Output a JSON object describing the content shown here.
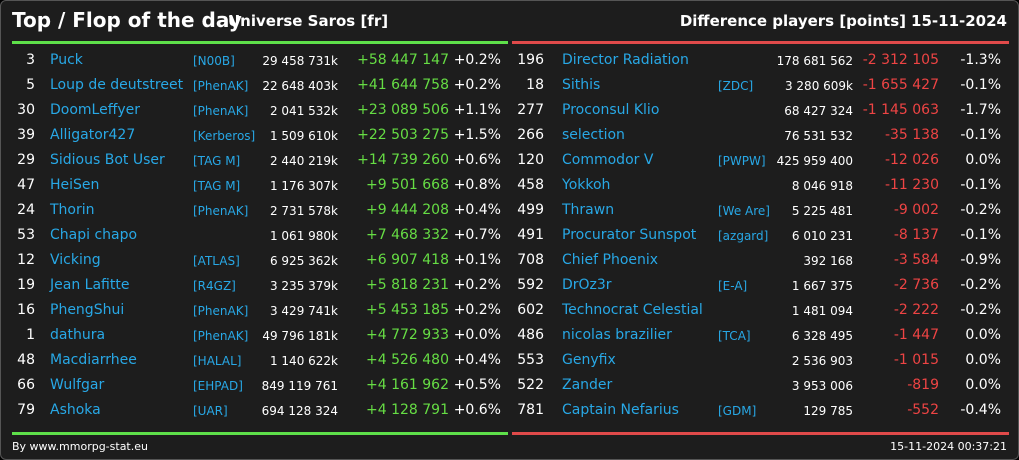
{
  "header": {
    "title": "Top / Flop of the day",
    "universe": "Universe Saros [fr]",
    "difference": "Difference players [points]",
    "date": "15-11-2024"
  },
  "colors": {
    "positive": "#66dd44",
    "negative": "#ee4444",
    "link": "#28a8e6",
    "top_rule": "#5ee04a",
    "flop_rule": "#e04a4a"
  },
  "top": [
    {
      "rank": "3",
      "name": "Puck",
      "ally": "[N00B]",
      "points": "29 458 731k",
      "delta": "+58 447 147",
      "pct": "+0.2%"
    },
    {
      "rank": "5",
      "name": "Loup de deutstreet",
      "ally": "[PhenAK]",
      "points": "22 648 403k",
      "delta": "+41 644 758",
      "pct": "+0.2%"
    },
    {
      "rank": "30",
      "name": "DoomLeffyer",
      "ally": "[PhenAK]",
      "points": "2 041 532k",
      "delta": "+23 089 506",
      "pct": "+1.1%"
    },
    {
      "rank": "39",
      "name": "Alligator427",
      "ally": "[Kerberos]",
      "points": "1 509 610k",
      "delta": "+22 503 275",
      "pct": "+1.5%"
    },
    {
      "rank": "29",
      "name": "Sidious Bot User",
      "ally": "[TAG M]",
      "points": "2 440 219k",
      "delta": "+14 739 260",
      "pct": "+0.6%"
    },
    {
      "rank": "47",
      "name": "HeiSen",
      "ally": "[TAG M]",
      "points": "1 176 307k",
      "delta": "+9 501 668",
      "pct": "+0.8%"
    },
    {
      "rank": "24",
      "name": "Thorin",
      "ally": "[PhenAK]",
      "points": "2 731 578k",
      "delta": "+9 444 208",
      "pct": "+0.4%"
    },
    {
      "rank": "53",
      "name": "Chapi chapo",
      "ally": "",
      "points": "1 061 980k",
      "delta": "+7 468 332",
      "pct": "+0.7%"
    },
    {
      "rank": "12",
      "name": "Vicking",
      "ally": "[ATLAS]",
      "points": "6 925 362k",
      "delta": "+6 907 418",
      "pct": "+0.1%"
    },
    {
      "rank": "19",
      "name": "Jean Lafitte",
      "ally": "[R4GZ]",
      "points": "3 235 379k",
      "delta": "+5 818 231",
      "pct": "+0.2%"
    },
    {
      "rank": "16",
      "name": "PhengShui",
      "ally": "[PhenAK]",
      "points": "3 429 741k",
      "delta": "+5 453 185",
      "pct": "+0.2%"
    },
    {
      "rank": "1",
      "name": "dathura",
      "ally": "[PhenAK]",
      "points": "49 796 181k",
      "delta": "+4 772 933",
      "pct": "+0.0%"
    },
    {
      "rank": "48",
      "name": "Macdiarrhee",
      "ally": "[HALAL]",
      "points": "1 140 622k",
      "delta": "+4 526 480",
      "pct": "+0.4%"
    },
    {
      "rank": "66",
      "name": "Wulfgar",
      "ally": "[EHPAD]",
      "points": "849 119 761",
      "delta": "+4 161 962",
      "pct": "+0.5%"
    },
    {
      "rank": "79",
      "name": "Ashoka",
      "ally": "[UAR]",
      "points": "694 128 324",
      "delta": "+4 128 791",
      "pct": "+0.6%"
    }
  ],
  "flop": [
    {
      "rank": "196",
      "name": "Director Radiation",
      "ally": "",
      "points": "178 681 562",
      "delta": "-2 312 105",
      "pct": "-1.3%"
    },
    {
      "rank": "18",
      "name": "Sithis",
      "ally": "[ZDC]",
      "points": "3 280 609k",
      "delta": "-1 655 427",
      "pct": "-0.1%"
    },
    {
      "rank": "277",
      "name": "Proconsul Klio",
      "ally": "",
      "points": "68 427 324",
      "delta": "-1 145 063",
      "pct": "-1.7%"
    },
    {
      "rank": "266",
      "name": "selection",
      "ally": "",
      "points": "76 531 532",
      "delta": "-35 138",
      "pct": "-0.1%"
    },
    {
      "rank": "120",
      "name": "Commodor V",
      "ally": "[PWPW]",
      "points": "425 959 400",
      "delta": "-12 026",
      "pct": "0.0%"
    },
    {
      "rank": "458",
      "name": "Yokkoh",
      "ally": "",
      "points": "8 046 918",
      "delta": "-11 230",
      "pct": "-0.1%"
    },
    {
      "rank": "499",
      "name": "Thrawn",
      "ally": "[We Are]",
      "points": "5 225 481",
      "delta": "-9 002",
      "pct": "-0.2%"
    },
    {
      "rank": "491",
      "name": "Procurator Sunspot",
      "ally": "[azgard]",
      "points": "6 010 231",
      "delta": "-8 137",
      "pct": "-0.1%"
    },
    {
      "rank": "708",
      "name": "Chief Phoenix",
      "ally": "",
      "points": "392 168",
      "delta": "-3 584",
      "pct": "-0.9%"
    },
    {
      "rank": "592",
      "name": "DrOz3r",
      "ally": "[E-A]",
      "points": "1 667 375",
      "delta": "-2 736",
      "pct": "-0.2%"
    },
    {
      "rank": "602",
      "name": "Technocrat Celestial",
      "ally": "",
      "points": "1 481 094",
      "delta": "-2 222",
      "pct": "-0.2%"
    },
    {
      "rank": "486",
      "name": "nicolas brazilier",
      "ally": "[TCA]",
      "points": "6 328 495",
      "delta": "-1 447",
      "pct": "0.0%"
    },
    {
      "rank": "553",
      "name": "Genyfix",
      "ally": "",
      "points": "2 536 903",
      "delta": "-1 015",
      "pct": "0.0%"
    },
    {
      "rank": "522",
      "name": "Zander",
      "ally": "",
      "points": "3 953 006",
      "delta": "-819",
      "pct": "0.0%"
    },
    {
      "rank": "781",
      "name": "Captain Nefarius",
      "ally": "[GDM]",
      "points": "129 785",
      "delta": "-552",
      "pct": "-0.4%"
    }
  ],
  "footer": {
    "credit": "By www.mmorpg-stat.eu",
    "timestamp": "15-11-2024 00:37:21"
  }
}
